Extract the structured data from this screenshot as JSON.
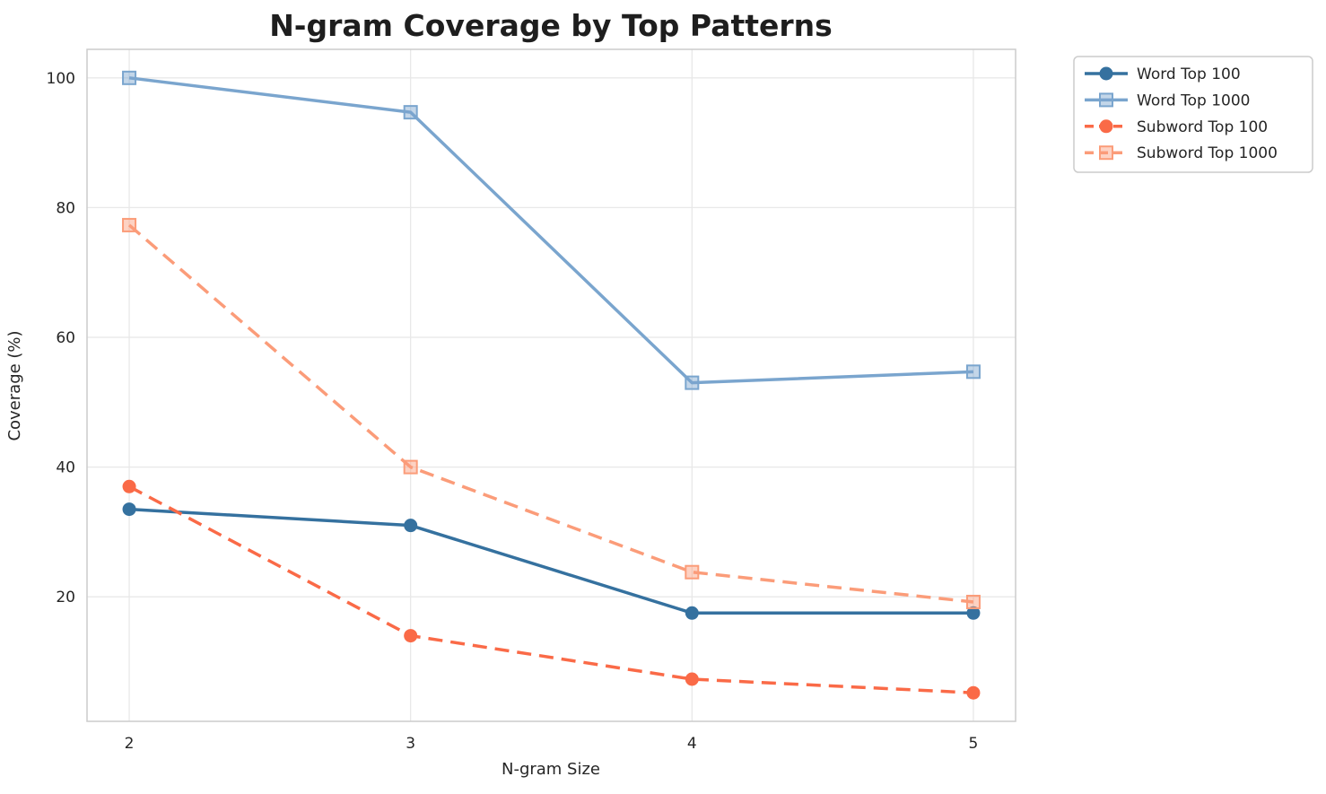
{
  "chart_data": {
    "type": "line",
    "title": "N-gram Coverage by Top Patterns",
    "xlabel": "N-gram Size",
    "ylabel": "Coverage (%)",
    "x": [
      2,
      3,
      4,
      5
    ],
    "xticks": [
      "2",
      "3",
      "4",
      "5"
    ],
    "yticks": [
      20,
      40,
      60,
      80,
      100
    ],
    "xlim": [
      1.85,
      5.15
    ],
    "ylim": [
      0.8,
      104.4
    ],
    "grid": true,
    "legend_position": "outside-top-right",
    "series": [
      {
        "name": "Word Top 100",
        "color": "#35719F",
        "marker": "circle",
        "line_style": "solid",
        "values": [
          33.5,
          31.0,
          17.5,
          17.5
        ]
      },
      {
        "name": "Word Top 1000",
        "color": "#7AA5CE",
        "marker": "square",
        "line_style": "solid",
        "values": [
          100.0,
          94.7,
          53.0,
          54.7
        ]
      },
      {
        "name": "Subword Top 100",
        "color": "#FA6A47",
        "marker": "circle",
        "line_style": "dashed",
        "values": [
          37.0,
          14.0,
          7.3,
          5.2
        ]
      },
      {
        "name": "Subword Top 1000",
        "color": "#FB9C79",
        "marker": "square",
        "line_style": "dashed",
        "values": [
          77.3,
          40.0,
          23.8,
          19.2
        ]
      }
    ],
    "colors": {
      "grid": "#e8e8e8",
      "spine": "#cccccc",
      "tick_text": "#262626",
      "title_text": "#1e1e1e",
      "legend_border": "#cccccc",
      "legend_bg": "#ffffff"
    }
  }
}
